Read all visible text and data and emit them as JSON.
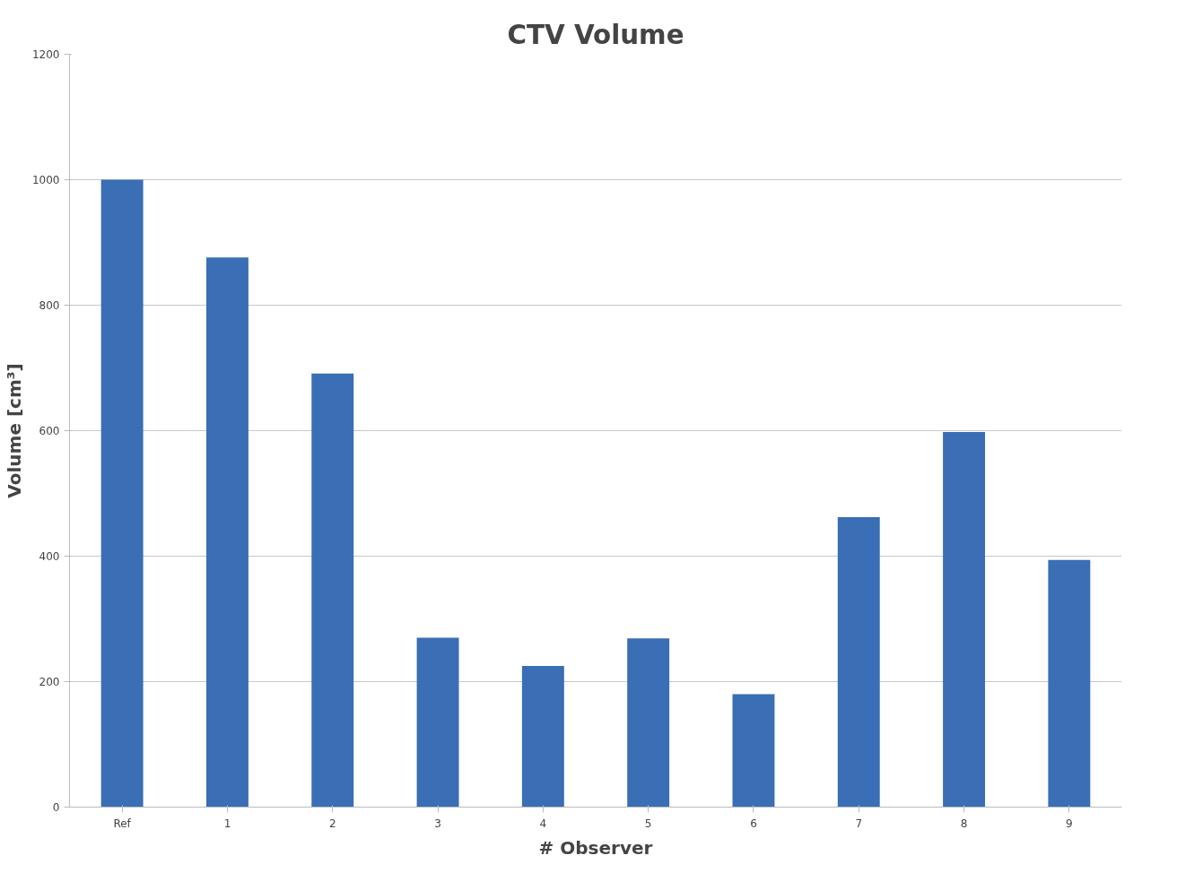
{
  "chart_data": {
    "type": "bar",
    "title": "CTV Volume",
    "xlabel": "# Observer",
    "ylabel": "Volume [cm³]",
    "categories": [
      "Ref",
      "1",
      "2",
      "3",
      "4",
      "5",
      "6",
      "7",
      "8",
      "9"
    ],
    "values": [
      1000,
      876,
      691,
      270,
      225,
      269,
      180,
      462,
      598,
      394
    ],
    "color": "#3a6eb5",
    "ylim": [
      0,
      1200
    ],
    "yticks": [
      0,
      200,
      400,
      600,
      800,
      1000,
      1200
    ],
    "grid": "y"
  }
}
